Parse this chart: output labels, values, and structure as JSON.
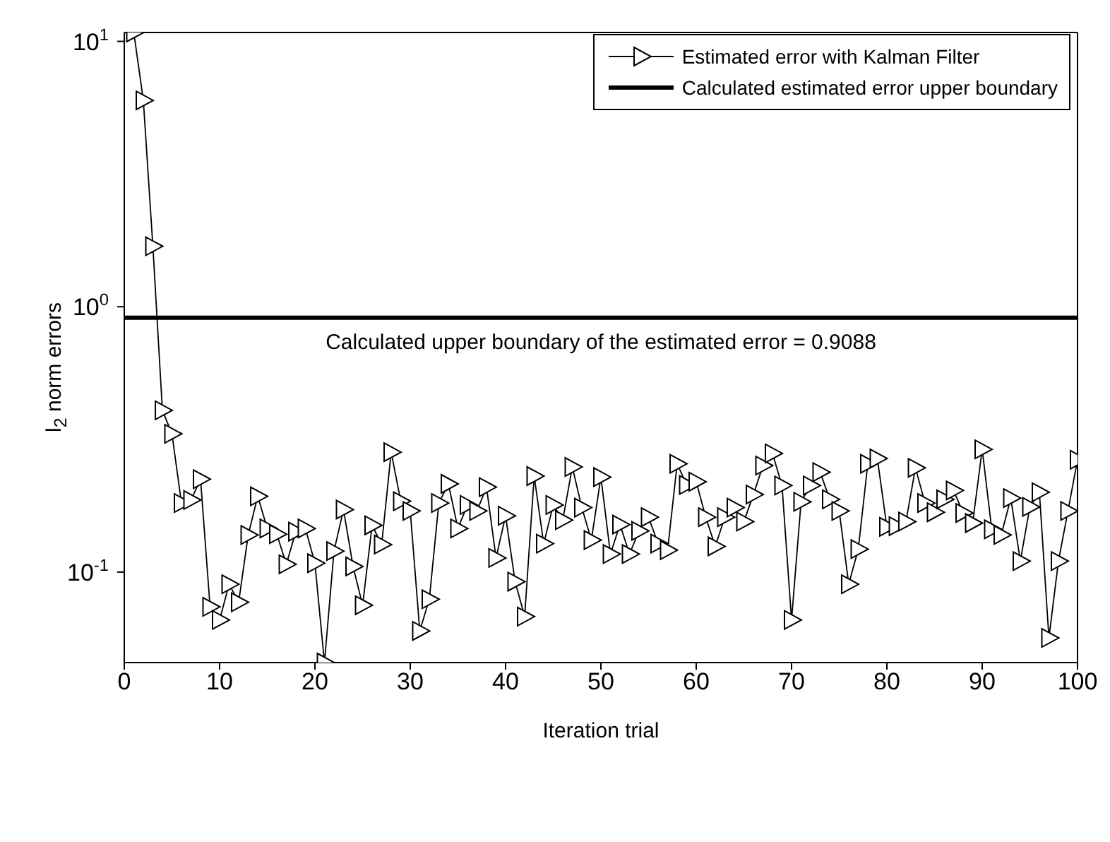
{
  "chart_data": {
    "type": "line",
    "xlabel": "Iteration trial",
    "ylabel": "l$_{2}$ norm errors",
    "x": [
      1,
      2,
      3,
      4,
      5,
      6,
      7,
      8,
      9,
      10,
      11,
      12,
      13,
      14,
      15,
      16,
      17,
      18,
      19,
      20,
      21,
      22,
      23,
      24,
      25,
      26,
      27,
      28,
      29,
      30,
      31,
      32,
      33,
      34,
      35,
      36,
      37,
      38,
      39,
      40,
      41,
      42,
      43,
      44,
      45,
      46,
      47,
      48,
      49,
      50,
      51,
      52,
      53,
      54,
      55,
      56,
      57,
      58,
      59,
      60,
      61,
      62,
      63,
      64,
      65,
      66,
      67,
      68,
      69,
      70,
      71,
      72,
      73,
      74,
      75,
      76,
      77,
      78,
      79,
      80,
      81,
      82,
      83,
      84,
      85,
      86,
      87,
      88,
      89,
      90,
      91,
      92,
      93,
      94,
      95,
      96,
      97,
      98,
      99,
      100
    ],
    "series": [
      {
        "name": "Estimated error with Kalman Filter",
        "color": "#000000",
        "marker": "triangle",
        "values": [
          10.8,
          5.99,
          1.69,
          0.407,
          0.332,
          0.182,
          0.187,
          0.224,
          0.074,
          0.066,
          0.09,
          0.077,
          0.138,
          0.193,
          0.146,
          0.139,
          0.107,
          0.142,
          0.146,
          0.108,
          0.0456,
          0.12,
          0.172,
          0.105,
          0.075,
          0.15,
          0.127,
          0.283,
          0.185,
          0.17,
          0.06,
          0.079,
          0.182,
          0.215,
          0.146,
          0.179,
          0.17,
          0.209,
          0.113,
          0.163,
          0.092,
          0.068,
          0.23,
          0.128,
          0.179,
          0.157,
          0.249,
          0.175,
          0.132,
          0.228,
          0.117,
          0.151,
          0.117,
          0.143,
          0.161,
          0.128,
          0.121,
          0.256,
          0.213,
          0.219,
          0.161,
          0.125,
          0.161,
          0.175,
          0.155,
          0.196,
          0.252,
          0.28,
          0.212,
          0.066,
          0.184,
          0.212,
          0.238,
          0.188,
          0.17,
          0.09,
          0.122,
          0.256,
          0.268,
          0.148,
          0.149,
          0.155,
          0.247,
          0.182,
          0.168,
          0.188,
          0.203,
          0.167,
          0.153,
          0.29,
          0.145,
          0.138,
          0.19,
          0.11,
          0.176,
          0.2,
          0.0565,
          0.11,
          0.17,
          0.265
        ]
      }
    ],
    "ref_lines": [
      {
        "axis": "y",
        "value": 0.9088,
        "label": "Calculated estimated error upper boundary",
        "color": "#000000"
      }
    ],
    "annotations": [
      {
        "text": "Calculated upper boundary of the estimated error = 0.9088",
        "y": 0.9088
      }
    ],
    "log": "y",
    "xlim": [
      0,
      100
    ],
    "xticks": [
      0,
      10,
      20,
      30,
      40,
      50,
      60,
      70,
      80,
      90,
      100
    ],
    "ylim": [
      0.0456,
      10.8
    ],
    "yticks": [
      {
        "value": 0.1,
        "label": "10$^{-1}$"
      },
      {
        "value": 1,
        "label": "10$^{0}$"
      },
      {
        "value": 10,
        "label": "10$^{1}$"
      }
    ],
    "grid": false,
    "legend": "top right",
    "line_style": "solid"
  }
}
